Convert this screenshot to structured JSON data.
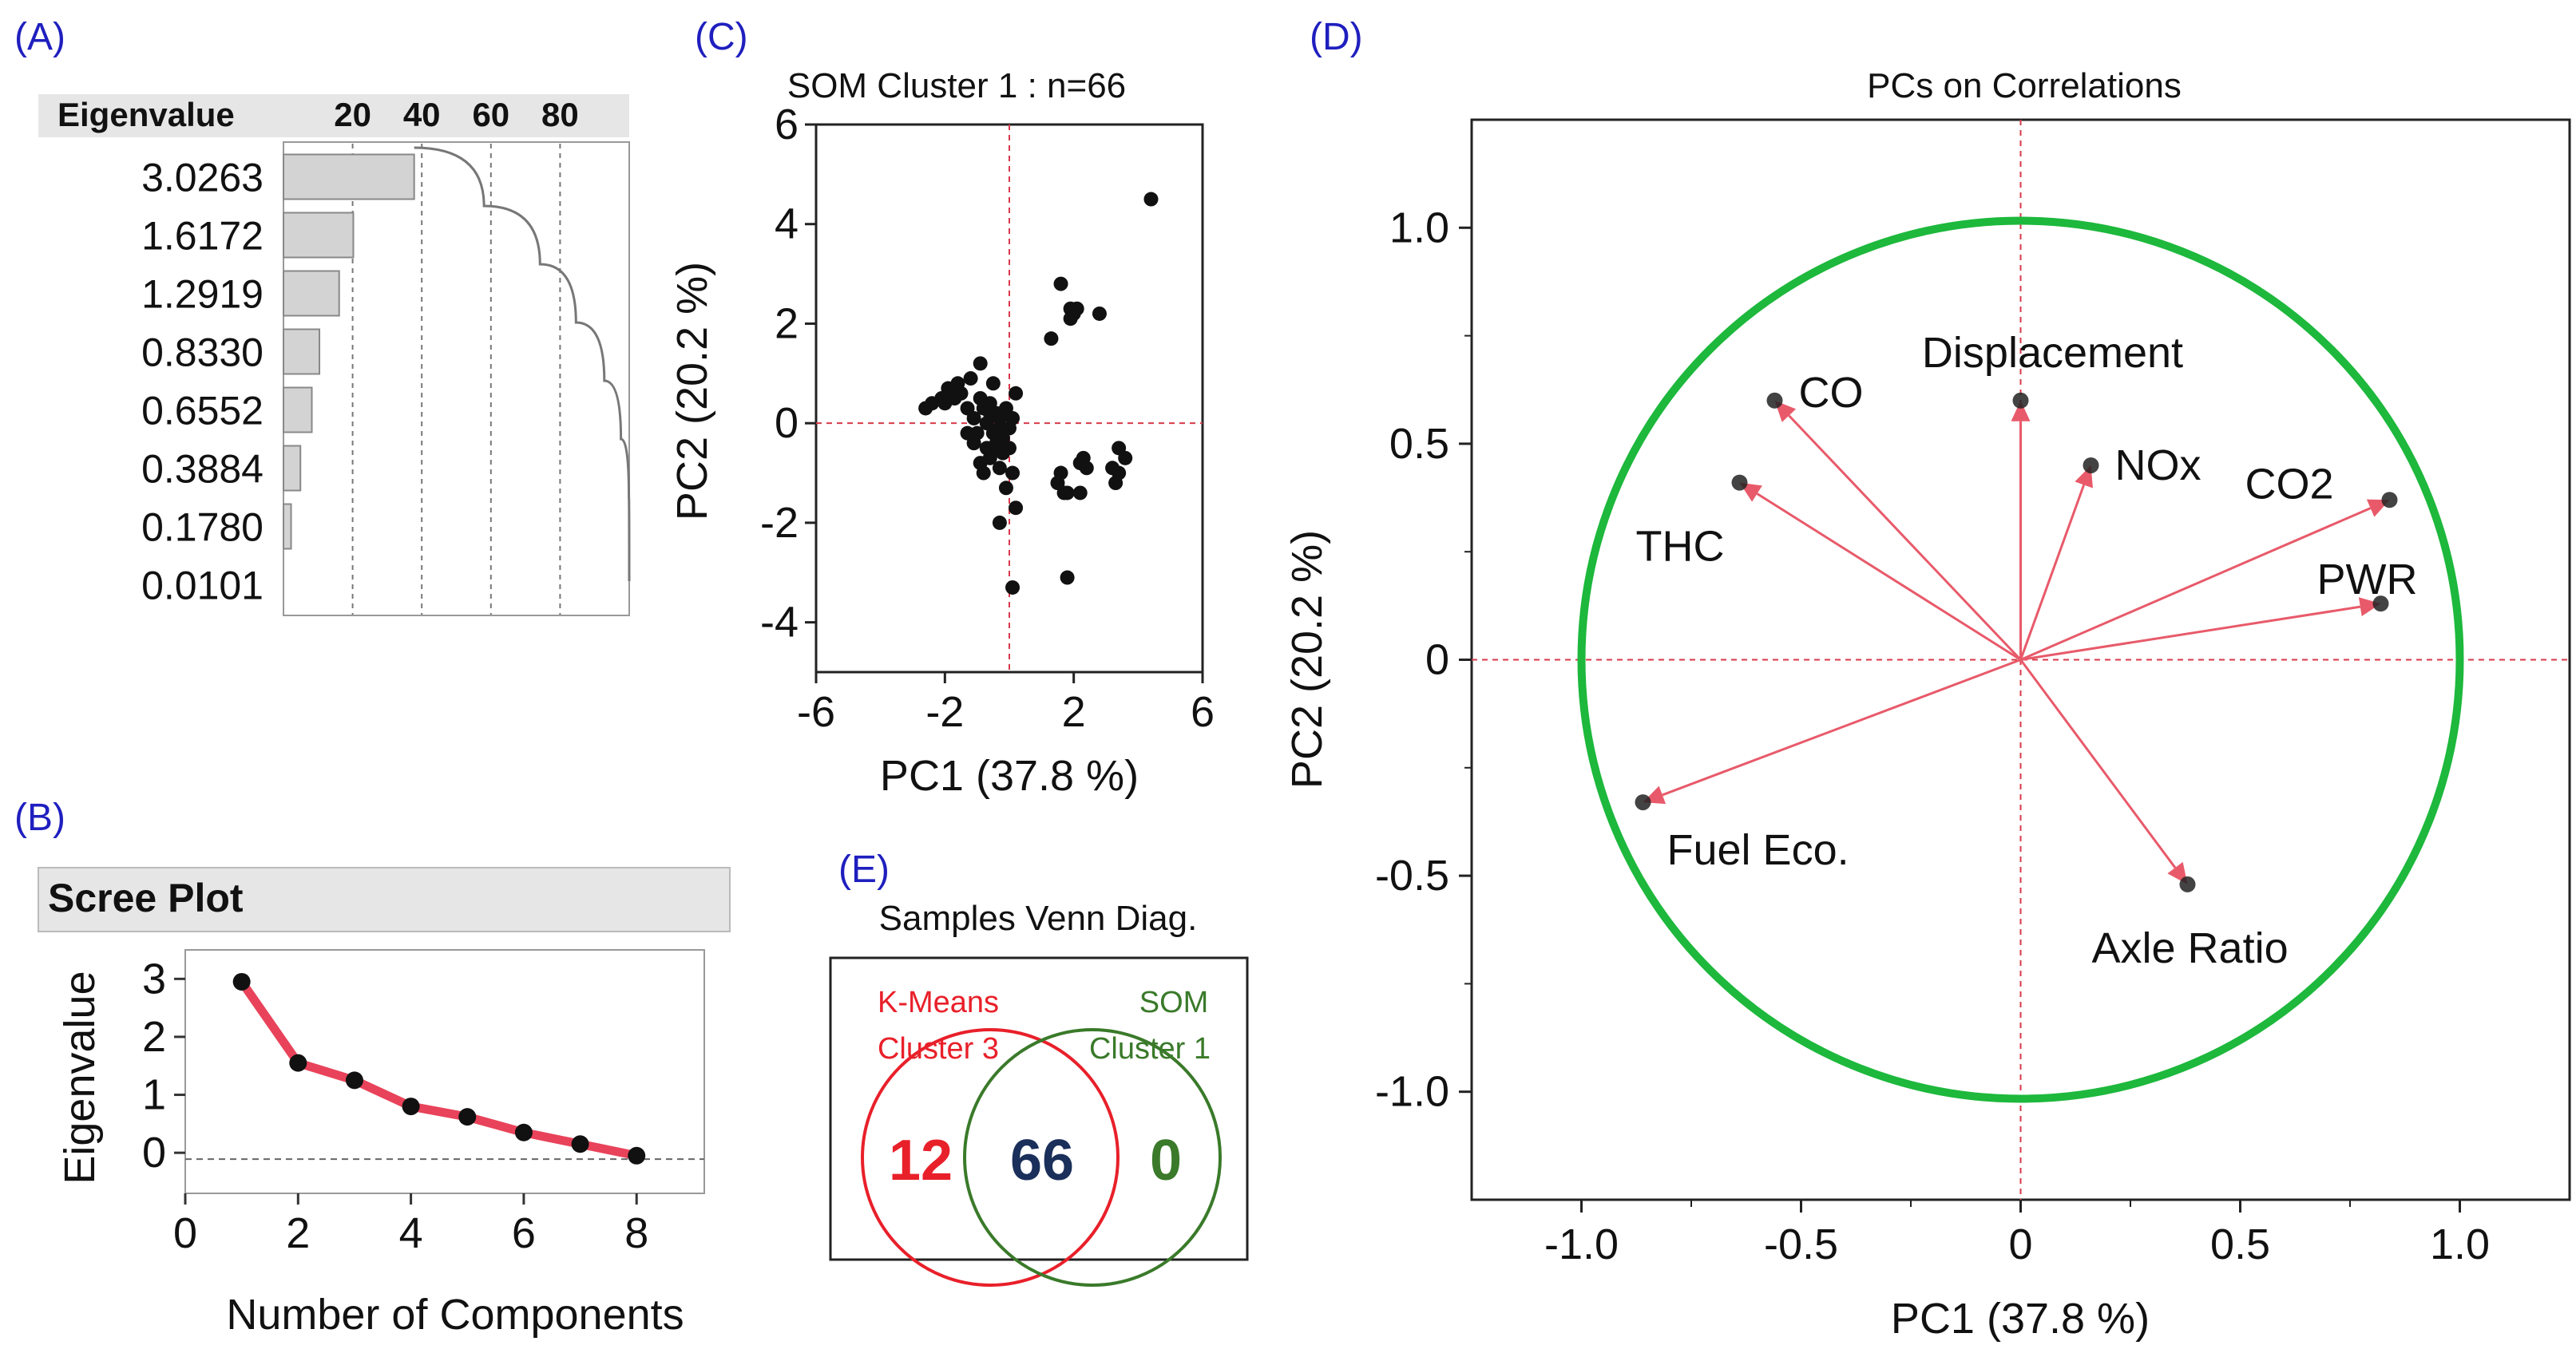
{
  "panels": {
    "a": "(A)",
    "b": "(B)",
    "c": "(C)",
    "d": "(D)",
    "e": "(E)"
  },
  "chart_data": [
    {
      "id": "A",
      "type": "bar",
      "header_label": "Eigenvalue",
      "xticks": [
        "20",
        "40",
        "60",
        "80"
      ],
      "categories": [
        "3.0263",
        "1.6172",
        "1.2919",
        "0.8330",
        "0.6552",
        "0.3884",
        "0.1780",
        "0.0101"
      ],
      "values": [
        3.0263,
        1.6172,
        1.2919,
        0.833,
        0.6552,
        0.3884,
        0.178,
        0.0101
      ],
      "percent_values": [
        37.8,
        20.2,
        16.1,
        10.4,
        8.2,
        4.9,
        2.2,
        0.1
      ],
      "cumulative_percent": [
        37.8,
        58.0,
        74.2,
        84.6,
        92.8,
        97.6,
        99.9,
        100.0
      ],
      "xlim": [
        0,
        100
      ]
    },
    {
      "id": "B",
      "type": "line",
      "title": "Scree Plot",
      "xlabel": "Number of Components",
      "ylabel": "Eigenvalue",
      "x": [
        1,
        2,
        3,
        4,
        5,
        6,
        7,
        8
      ],
      "y": [
        2.95,
        1.55,
        1.25,
        0.8,
        0.62,
        0.35,
        0.15,
        -0.05
      ],
      "xticks": [
        "0",
        "2",
        "4",
        "6",
        "8"
      ],
      "yticks": [
        "3",
        "2",
        "1",
        "0"
      ],
      "xlim": [
        0,
        9.2
      ],
      "ylim": [
        -0.7,
        3.5
      ],
      "line_color": "#e8435a"
    },
    {
      "id": "C",
      "type": "scatter",
      "title": "SOM Cluster 1 : n=66",
      "xlabel": "PC1  (37.8 %)",
      "ylabel": "PC2  (20.2 %)",
      "xlim": [
        -6,
        6
      ],
      "ylim": [
        -5,
        6
      ],
      "xticks": [
        "-6",
        "-2",
        "2",
        "6"
      ],
      "yticks": [
        "6",
        "4",
        "2",
        "0",
        "-2",
        "-4"
      ],
      "points": [
        [
          4.4,
          4.5
        ],
        [
          1.6,
          2.8
        ],
        [
          1.9,
          2.3
        ],
        [
          2.1,
          2.3
        ],
        [
          2.8,
          2.2
        ],
        [
          1.9,
          2.1
        ],
        [
          1.3,
          1.7
        ],
        [
          -0.9,
          1.2
        ],
        [
          -1.2,
          0.9
        ],
        [
          -1.6,
          0.8
        ],
        [
          -1.9,
          0.7
        ],
        [
          -2.1,
          0.5
        ],
        [
          -2.4,
          0.4
        ],
        [
          -2.6,
          0.3
        ],
        [
          -0.6,
          0.4
        ],
        [
          -0.4,
          0.2
        ],
        [
          -0.1,
          0.3
        ],
        [
          0.2,
          0.6
        ],
        [
          -0.7,
          0.0
        ],
        [
          -0.3,
          -0.1
        ],
        [
          0.1,
          0.1
        ],
        [
          -0.5,
          -0.2
        ],
        [
          -0.2,
          -0.3
        ],
        [
          -0.4,
          -0.5
        ],
        [
          -0.6,
          -0.7
        ],
        [
          -0.3,
          -0.9
        ],
        [
          -0.8,
          -1.0
        ],
        [
          -1.1,
          -0.4
        ],
        [
          -1.0,
          -0.2
        ],
        [
          0.1,
          -1.0
        ],
        [
          -0.1,
          -1.3
        ],
        [
          -0.3,
          -2.0
        ],
        [
          0.2,
          -1.7
        ],
        [
          0.1,
          -3.3
        ],
        [
          1.8,
          -3.1
        ],
        [
          1.5,
          -1.2
        ],
        [
          1.8,
          -1.4
        ],
        [
          2.2,
          -1.4
        ],
        [
          2.3,
          -0.7
        ],
        [
          2.2,
          -0.8
        ],
        [
          3.4,
          -0.5
        ],
        [
          3.6,
          -0.7
        ],
        [
          3.3,
          -1.2
        ],
        [
          1.6,
          -1.0
        ],
        [
          3.4,
          -1.0
        ],
        [
          -1.3,
          0.3
        ],
        [
          -0.9,
          0.5
        ],
        [
          -0.2,
          -0.6
        ],
        [
          -0.7,
          -0.5
        ],
        [
          -1.1,
          0.1
        ],
        [
          0.0,
          -0.1
        ],
        [
          -0.5,
          0.8
        ],
        [
          -1.5,
          0.6
        ],
        [
          -2.0,
          0.4
        ],
        [
          -0.3,
          0.1
        ],
        [
          -0.9,
          -0.8
        ],
        [
          -0.6,
          0.2
        ],
        [
          2.4,
          -0.9
        ],
        [
          1.7,
          -1.4
        ],
        [
          3.2,
          -0.9
        ],
        [
          2.0,
          2.2
        ],
        [
          -0.4,
          -0.4
        ],
        [
          -1.3,
          -0.2
        ],
        [
          -0.8,
          0.3
        ],
        [
          0.0,
          -0.5
        ],
        [
          -1.7,
          0.5
        ]
      ]
    },
    {
      "id": "D",
      "type": "scatter",
      "title": "PCs on Correlations",
      "xlabel": "PC1  (37.8 %)",
      "ylabel": "PC2  (20.2 %)",
      "xlim": [
        -1.25,
        1.25
      ],
      "ylim": [
        -1.25,
        1.25
      ],
      "xticks": [
        "-1.0",
        "-0.5",
        "0",
        "0.5",
        "1.0"
      ],
      "yticks": [
        "1.0",
        "0.5",
        "0",
        "-0.5",
        "-1.0"
      ],
      "circle_color": "#1db83c",
      "arrow_color": "#e85a6a",
      "loadings": [
        {
          "name": "Displacement",
          "x": 0.0,
          "y": 0.6
        },
        {
          "name": "CO",
          "x": -0.56,
          "y": 0.6
        },
        {
          "name": "NOx",
          "x": 0.16,
          "y": 0.45
        },
        {
          "name": "CO2",
          "x": 0.84,
          "y": 0.37
        },
        {
          "name": "THC",
          "x": -0.64,
          "y": 0.41
        },
        {
          "name": "PWR",
          "x": 0.82,
          "y": 0.13
        },
        {
          "name": "Fuel Eco.",
          "x": -0.86,
          "y": -0.33
        },
        {
          "name": "Axle Ratio",
          "x": 0.38,
          "y": -0.52
        }
      ]
    },
    {
      "id": "E",
      "type": "venn",
      "title": "Samples Venn Diag.",
      "left_label_1": "K-Means",
      "left_label_2": "Cluster 3",
      "right_label_1": "SOM",
      "right_label_2": "Cluster 1",
      "left_only": "12",
      "overlap": "66",
      "right_only": "0",
      "left_color": "#e8202a",
      "right_color": "#3a7a2a",
      "overlap_color": "#1a2f5a"
    }
  ]
}
